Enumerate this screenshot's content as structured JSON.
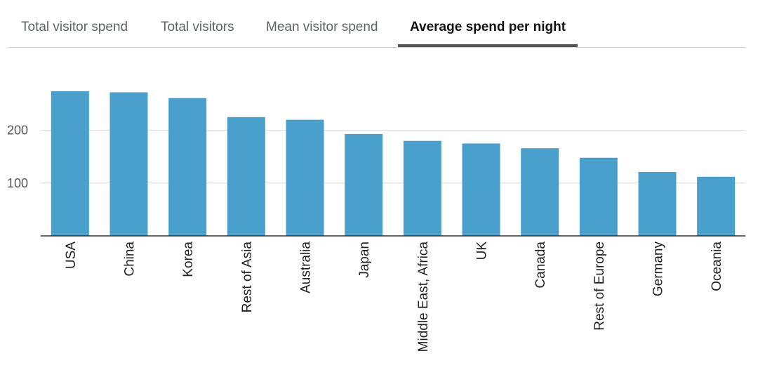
{
  "tabs": [
    {
      "label": "Total visitor spend",
      "active": false
    },
    {
      "label": "Total visitors",
      "active": false
    },
    {
      "label": "Mean visitor spend",
      "active": false
    },
    {
      "label": "Average spend per night",
      "active": true
    }
  ],
  "colors": {
    "bar": "#4aa0cc",
    "grid": "#d9d9d9",
    "axis": "#333333",
    "active_tab_underline": "#555555"
  },
  "chart_data": {
    "type": "bar",
    "categories": [
      "USA",
      "China",
      "Korea",
      "Rest of Asia",
      "Australia",
      "Japan",
      "Middle East, Africa",
      "UK",
      "Canada",
      "Rest of Europe",
      "Germany",
      "Oceania"
    ],
    "values": [
      274,
      272,
      261,
      225,
      220,
      193,
      180,
      175,
      166,
      148,
      121,
      112
    ],
    "yticks": [
      100,
      200
    ],
    "ylim": [
      0,
      300
    ],
    "grid": true,
    "title": "",
    "xlabel": "",
    "ylabel": ""
  }
}
